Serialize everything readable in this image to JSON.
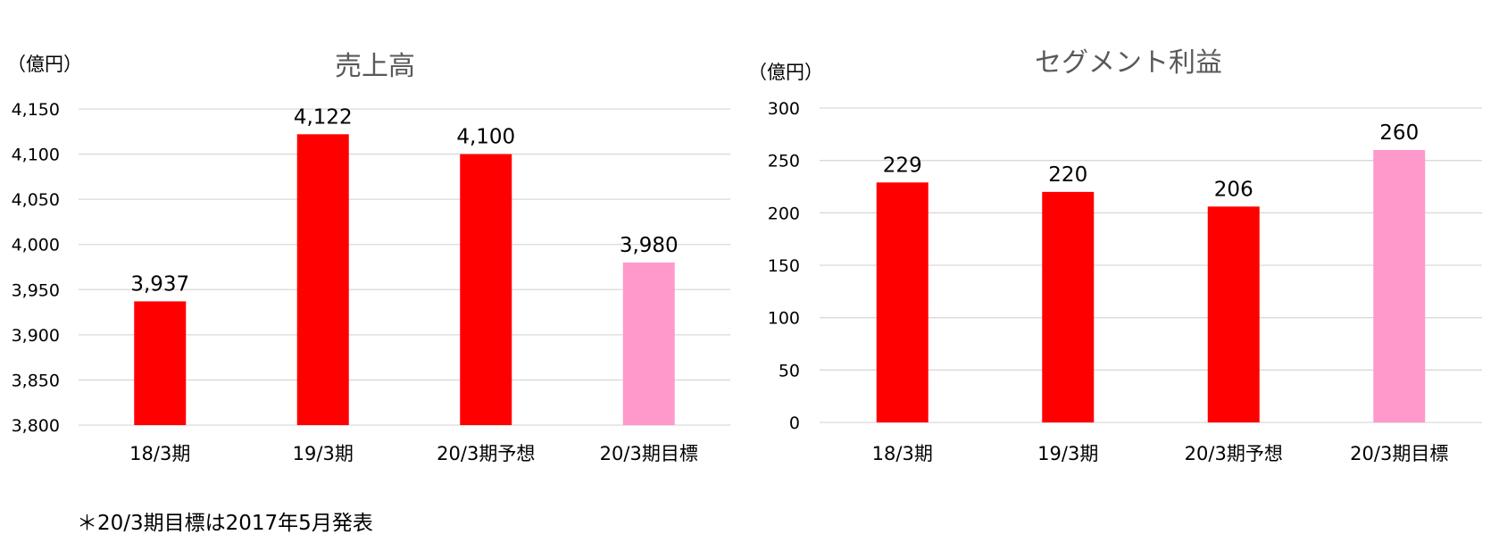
{
  "chart_data": [
    {
      "type": "bar",
      "title": "売上高",
      "unit_label": "（億円）",
      "categories": [
        "18/3期",
        "19/3期",
        "20/3期予想",
        "20/3期目標"
      ],
      "values": [
        3937,
        4122,
        4100,
        3980
      ],
      "data_labels": [
        "3,937",
        "4,122",
        "4,100",
        "3,980"
      ],
      "bar_colors": [
        "#FF0000",
        "#FF0000",
        "#FF0000",
        "#FF99CC"
      ],
      "ylim": [
        3800,
        4150
      ],
      "yticks": [
        3800,
        3850,
        3900,
        3950,
        4000,
        4050,
        4100,
        4150
      ],
      "ytick_labels": [
        "3,800",
        "3,850",
        "3,900",
        "3,950",
        "4,000",
        "4,050",
        "4,100",
        "4,150"
      ],
      "grid": true,
      "legend": "none"
    },
    {
      "type": "bar",
      "title": "セグメント利益",
      "unit_label": "（億円）",
      "categories": [
        "18/3期",
        "19/3期",
        "20/3期予想",
        "20/3期目標"
      ],
      "values": [
        229,
        220,
        206,
        260
      ],
      "data_labels": [
        "229",
        "220",
        "206",
        "260"
      ],
      "bar_colors": [
        "#FF0000",
        "#FF0000",
        "#FF0000",
        "#FF99CC"
      ],
      "ylim": [
        0,
        300
      ],
      "yticks": [
        0,
        50,
        100,
        150,
        200,
        250,
        300
      ],
      "ytick_labels": [
        "0",
        "50",
        "100",
        "150",
        "200",
        "250",
        "300"
      ],
      "grid": true,
      "legend": "none"
    }
  ],
  "footnote": "＊20/3期目標は2017年5月発表"
}
